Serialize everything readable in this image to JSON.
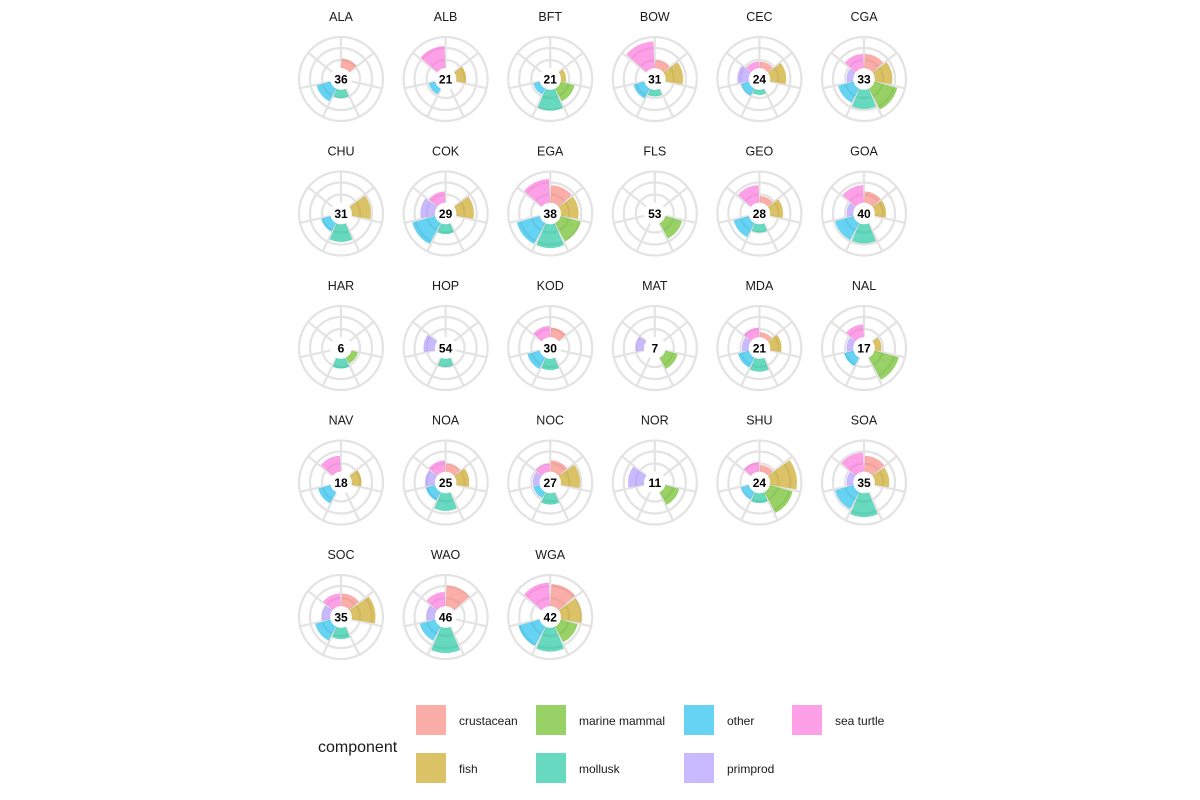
{
  "chart_data": {
    "type": "polar-bar",
    "legend": {
      "title": "component",
      "position": "bottom",
      "entries": [
        {
          "key": "crustacean",
          "label": "crustacean",
          "color": "#F8766D"
        },
        {
          "key": "fish",
          "label": "fish",
          "color": "#C49A00"
        },
        {
          "key": "marine_mammal",
          "label": "marine mammal",
          "color": "#53B400"
        },
        {
          "key": "mollusk",
          "label": "mollusk",
          "color": "#00C094"
        },
        {
          "key": "other",
          "label": "other",
          "color": "#00B6EB"
        },
        {
          "key": "primprod",
          "label": "primprod",
          "color": "#A58AFF"
        },
        {
          "key": "sea_turtle",
          "label": "sea turtle",
          "color": "#FB61D7"
        }
      ]
    },
    "components": [
      "crustacean",
      "fish",
      "marine_mammal",
      "mollusk",
      "other",
      "primprod",
      "sea_turtle"
    ],
    "radial_max": 100,
    "grid": true,
    "facets": [
      {
        "name": "ALA",
        "total": "36",
        "values": {
          "crustacean": 30,
          "fish": 0,
          "marine_mammal": 0,
          "mollusk": 25,
          "other": 45,
          "primprod": 0,
          "sea_turtle": 0
        }
      },
      {
        "name": "ALB",
        "total": "21",
        "values": {
          "crustacean": 0,
          "fish": 30,
          "marine_mammal": 0,
          "mollusk": 0,
          "other": 20,
          "primprod": 0,
          "sea_turtle": 70
        }
      },
      {
        "name": "BFT",
        "total": "21",
        "values": {
          "crustacean": 0,
          "fish": 15,
          "marine_mammal": 45,
          "mollusk": 65,
          "other": 20,
          "primprod": 0,
          "sea_turtle": 0
        }
      },
      {
        "name": "BOW",
        "total": "31",
        "values": {
          "crustacean": 25,
          "fish": 55,
          "marine_mammal": 0,
          "mollusk": 20,
          "other": 35,
          "primprod": 0,
          "sea_turtle": 85
        }
      },
      {
        "name": "CEC",
        "total": "24",
        "values": {
          "crustacean": 20,
          "fish": 50,
          "marine_mammal": 0,
          "mollusk": 15,
          "other": 25,
          "primprod": 35,
          "sea_turtle": 20
        }
      },
      {
        "name": "CGA",
        "total": "33",
        "values": {
          "crustacean": 45,
          "fish": 55,
          "marine_mammal": 75,
          "mollusk": 60,
          "other": 50,
          "primprod": 20,
          "sea_turtle": 45
        }
      },
      {
        "name": "CHU",
        "total": "31",
        "values": {
          "crustacean": 0,
          "fish": 60,
          "marine_mammal": 0,
          "mollusk": 55,
          "other": 30,
          "primprod": 0,
          "sea_turtle": 0
        }
      },
      {
        "name": "COK",
        "total": "29",
        "values": {
          "crustacean": 0,
          "fish": 55,
          "marine_mammal": 0,
          "mollusk": 30,
          "other": 75,
          "primprod": 45,
          "sea_turtle": 35
        }
      },
      {
        "name": "EGA",
        "total": "38",
        "values": {
          "crustacean": 55,
          "fish": 55,
          "marine_mammal": 65,
          "mollusk": 75,
          "other": 75,
          "primprod": 0,
          "sea_turtle": 75
        }
      },
      {
        "name": "FLS",
        "total": "53",
        "values": {
          "crustacean": 0,
          "fish": 0,
          "marine_mammal": 55,
          "mollusk": 0,
          "other": 0,
          "primprod": 0,
          "sea_turtle": 0
        }
      },
      {
        "name": "GEO",
        "total": "28",
        "values": {
          "crustacean": 20,
          "fish": 40,
          "marine_mammal": 0,
          "mollusk": 25,
          "other": 50,
          "primprod": 0,
          "sea_turtle": 55
        }
      },
      {
        "name": "GOA",
        "total": "40",
        "values": {
          "crustacean": 35,
          "fish": 35,
          "marine_mammal": 0,
          "mollusk": 60,
          "other": 60,
          "primprod": 20,
          "sea_turtle": 55
        }
      },
      {
        "name": "HAR",
        "total": "6",
        "values": {
          "crustacean": 0,
          "fish": 0,
          "marine_mammal": 20,
          "mollusk": 30,
          "other": 0,
          "primprod": 0,
          "sea_turtle": 0
        }
      },
      {
        "name": "HOP",
        "total": "54",
        "values": {
          "crustacean": 0,
          "fish": 0,
          "marine_mammal": 0,
          "mollusk": 25,
          "other": 0,
          "primprod": 35,
          "sea_turtle": 0
        }
      },
      {
        "name": "KOD",
        "total": "30",
        "values": {
          "crustacean": 30,
          "fish": 0,
          "marine_mammal": 0,
          "mollusk": 35,
          "other": 40,
          "primprod": 0,
          "sea_turtle": 35
        }
      },
      {
        "name": "MAT",
        "total": "7",
        "values": {
          "crustacean": 0,
          "fish": 0,
          "marine_mammal": 40,
          "mollusk": 0,
          "other": 0,
          "primprod": 25,
          "sea_turtle": 0
        }
      },
      {
        "name": "MDA",
        "total": "21",
        "values": {
          "crustacean": 15,
          "fish": 35,
          "marine_mammal": 0,
          "mollusk": 40,
          "other": 35,
          "primprod": 20,
          "sea_turtle": 30
        }
      },
      {
        "name": "NAL",
        "total": "17",
        "values": {
          "crustacean": 0,
          "fish": 20,
          "marine_mammal": 80,
          "mollusk": 0,
          "other": 30,
          "primprod": 20,
          "sea_turtle": 40
        }
      },
      {
        "name": "NAV",
        "total": "18",
        "values": {
          "crustacean": 0,
          "fish": 30,
          "marine_mammal": 0,
          "mollusk": 0,
          "other": 40,
          "primprod": 0,
          "sea_turtle": 50
        }
      },
      {
        "name": "NOA",
        "total": "25",
        "values": {
          "crustacean": 25,
          "fish": 40,
          "marine_mammal": 0,
          "mollusk": 55,
          "other": 30,
          "primprod": 30,
          "sea_turtle": 35
        }
      },
      {
        "name": "NOC",
        "total": "27",
        "values": {
          "crustacean": 35,
          "fish": 60,
          "marine_mammal": 0,
          "mollusk": 35,
          "other": 20,
          "primprod": 20,
          "sea_turtle": 25
        }
      },
      {
        "name": "NOR",
        "total": "11",
        "values": {
          "crustacean": 0,
          "fish": 0,
          "marine_mammal": 45,
          "mollusk": 0,
          "other": 0,
          "primprod": 50,
          "sea_turtle": 0
        }
      },
      {
        "name": "SHU",
        "total": "24",
        "values": {
          "crustacean": 20,
          "fish": 85,
          "marine_mammal": 75,
          "mollusk": 30,
          "other": 25,
          "primprod": 0,
          "sea_turtle": 30
        }
      },
      {
        "name": "SOA",
        "total": "35",
        "values": {
          "crustacean": 50,
          "fish": 45,
          "marine_mammal": 0,
          "mollusk": 75,
          "other": 60,
          "primprod": 20,
          "sea_turtle": 60
        }
      },
      {
        "name": "SOC",
        "total": "35",
        "values": {
          "crustacean": 40,
          "fish": 75,
          "marine_mammal": 0,
          "mollusk": 35,
          "other": 50,
          "primprod": 25,
          "sea_turtle": 40
        }
      },
      {
        "name": "WAO",
        "total": "46",
        "values": {
          "crustacean": 65,
          "fish": 0,
          "marine_mammal": 0,
          "mollusk": 80,
          "other": 50,
          "primprod": 25,
          "sea_turtle": 45
        }
      },
      {
        "name": "WGA",
        "total": "42",
        "values": {
          "crustacean": 70,
          "fish": 65,
          "marine_mammal": 55,
          "mollusk": 75,
          "other": 70,
          "primprod": 0,
          "sea_turtle": 75
        }
      }
    ]
  }
}
